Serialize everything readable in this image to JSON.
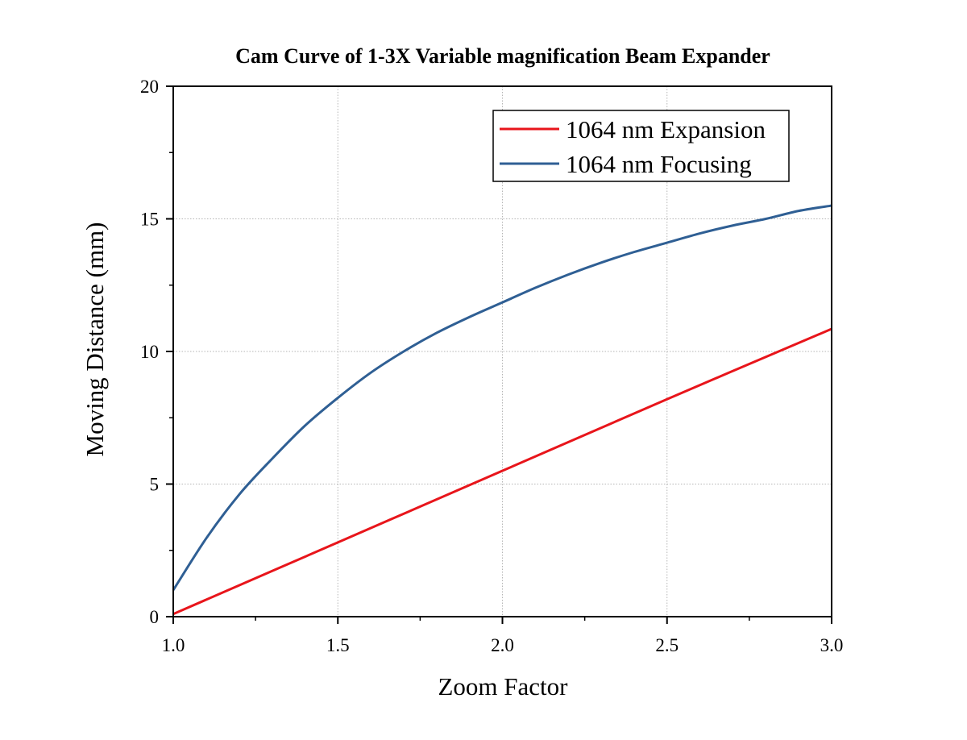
{
  "chart_data": {
    "type": "line",
    "title": "Cam Curve of 1-3X Variable magnification Beam Expander",
    "xlabel": "Zoom Factor",
    "ylabel": "Moving Distance (mm)",
    "xlim": [
      1.0,
      3.0
    ],
    "ylim": [
      0,
      20
    ],
    "xticks": [
      "1.0",
      "1.5",
      "2.0",
      "2.5",
      "3.0"
    ],
    "yticks": [
      "0",
      "5",
      "10",
      "15",
      "20"
    ],
    "grid": true,
    "legend_position": "top-right",
    "series": [
      {
        "name": "1064 nm Expansion",
        "color": "#e8151b",
        "x": [
          1.0,
          1.5,
          2.0,
          2.5,
          3.0
        ],
        "y": [
          0.1,
          2.8,
          5.5,
          8.2,
          10.85
        ]
      },
      {
        "name": "1064 nm Focusing",
        "color": "#2f5f94",
        "x": [
          1.0,
          1.1,
          1.2,
          1.3,
          1.4,
          1.5,
          1.6,
          1.7,
          1.8,
          1.9,
          2.0,
          2.1,
          2.2,
          2.3,
          2.4,
          2.5,
          2.6,
          2.7,
          2.8,
          2.9,
          3.0
        ],
        "y": [
          1.0,
          2.95,
          4.6,
          5.95,
          7.2,
          8.25,
          9.2,
          10.0,
          10.7,
          11.3,
          11.85,
          12.4,
          12.9,
          13.35,
          13.75,
          14.1,
          14.45,
          14.75,
          15.0,
          15.3,
          15.5
        ]
      }
    ]
  }
}
